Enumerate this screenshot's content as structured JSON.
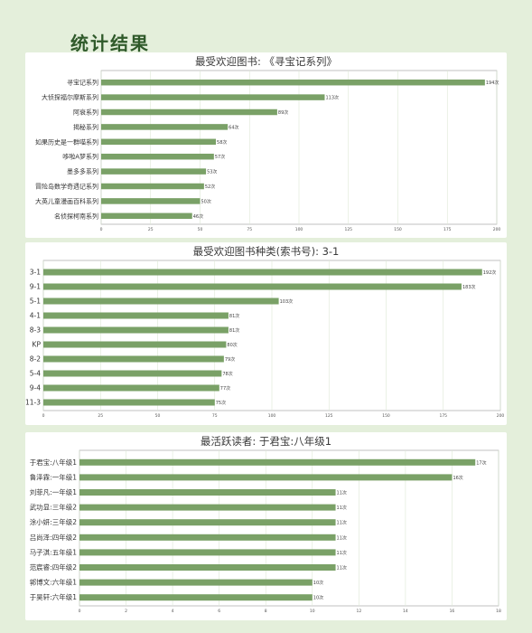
{
  "page": {
    "title": "统计结果"
  },
  "colors": {
    "bar": "#7aa167",
    "background": "#e4efdb",
    "title_text": "#3a3a3a"
  },
  "chart_data": [
    {
      "type": "bar",
      "orientation": "horizontal",
      "title": "最受欢迎图书: 《寻宝记系列》",
      "categories": [
        "寻宝记系列",
        "大侦探福尔摩斯系列",
        "阿衰系列",
        "揭秘系列",
        "如果历史是一群喵系列",
        "哆啦A梦系列",
        "墨多多系列",
        "冒险岛数学奇遇记系列",
        "大英儿童漫画百科系列",
        "名侦探柯南系列"
      ],
      "values": [
        194,
        113,
        89,
        64,
        58,
        57,
        53,
        52,
        50,
        46
      ],
      "value_suffix": "次",
      "ticks": [
        0,
        25,
        50,
        75,
        100,
        125,
        150,
        175,
        200
      ],
      "xlim": [
        0,
        200
      ],
      "grid": true
    },
    {
      "type": "bar",
      "orientation": "horizontal",
      "title": "最受欢迎图书种类(索书号): 3-1",
      "categories": [
        "3-1",
        "9-1",
        "5-1",
        "4-1",
        "8-3",
        "KP",
        "8-2",
        "5-4",
        "9-4",
        "11-3"
      ],
      "values": [
        192,
        183,
        103,
        81,
        81,
        80,
        79,
        78,
        77,
        75
      ],
      "value_suffix": "次",
      "ticks": [
        0,
        25,
        50,
        75,
        100,
        125,
        150,
        175,
        200
      ],
      "xlim": [
        0,
        200
      ],
      "grid": true
    },
    {
      "type": "bar",
      "orientation": "horizontal",
      "title": "最活跃读者: 于君宝:八年级1",
      "categories": [
        "于君宝:八年级1",
        "鲁泽霖:一年级1",
        "刘菲凡:一年级1",
        "武功显:三年级2",
        "涂小妍:三年级2",
        "吕尚泽:四年级2",
        "马子淇:五年级1",
        "范宸睿:四年级2",
        "郭博文:六年级1",
        "于昊轩:六年级1"
      ],
      "values": [
        17,
        16,
        11,
        11,
        11,
        11,
        11,
        11,
        10,
        10
      ],
      "value_suffix": "次",
      "ticks": [
        0,
        2,
        4,
        6,
        8,
        10,
        12,
        14,
        16,
        18
      ],
      "xlim": [
        0,
        18
      ],
      "grid": true
    }
  ]
}
